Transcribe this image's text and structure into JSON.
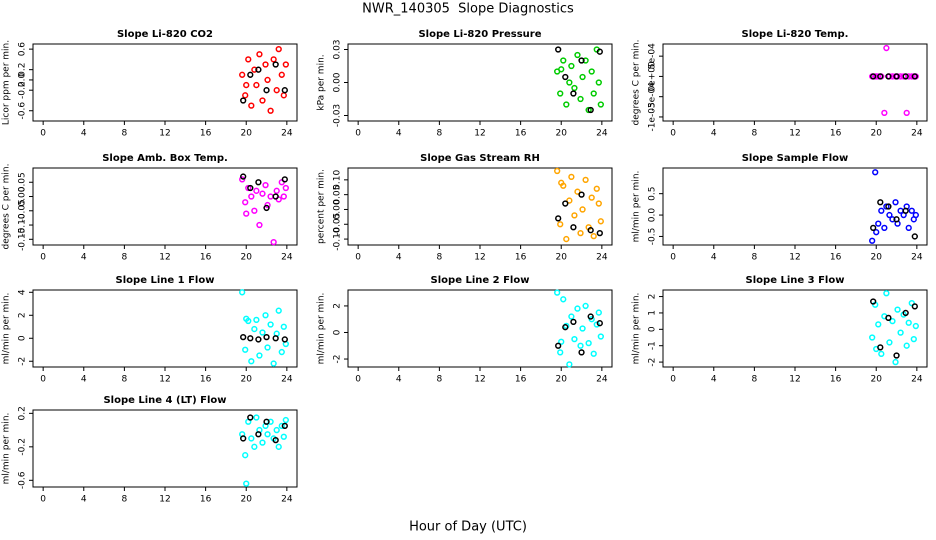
{
  "title": "NWR_140305  Slope Diagnostics",
  "x_label": "Hour of Day (UTC)",
  "chart_data": [
    {
      "type": "scatter",
      "title": "Slope Li-820 CO2",
      "y_label": "Licor ppm per min.",
      "xlim": [
        -1,
        25
      ],
      "xticks": [
        0,
        4,
        8,
        12,
        16,
        20,
        24
      ],
      "ylim": [
        -0.8,
        0.7
      ],
      "yticks": [
        -0.6,
        -0.2,
        {
          "value": 0,
          "label": "0.0"
        },
        0.2,
        0.6
      ],
      "series": [
        {
          "color": "#ff0000",
          "x": [
            19.6,
            19.9,
            20.2,
            20.5,
            20.8,
            21.0,
            21.3,
            21.6,
            21.9,
            22.1,
            22.4,
            22.7,
            23.0,
            23.2,
            23.5,
            23.7,
            23.9,
            20.0
          ],
          "values": [
            0.1,
            -0.3,
            0.4,
            -0.5,
            0.2,
            -0.1,
            0.5,
            -0.4,
            0.3,
            0.0,
            -0.6,
            0.4,
            -0.2,
            0.6,
            0.1,
            -0.3,
            0.3,
            -0.1
          ]
        },
        {
          "color": "#000000",
          "x": [
            19.7,
            20.4,
            21.2,
            22.0,
            22.9,
            23.8
          ],
          "values": [
            -0.4,
            0.1,
            0.2,
            -0.2,
            0.3,
            -0.2
          ]
        }
      ]
    },
    {
      "type": "scatter",
      "title": "Slope Li-820 Pressure",
      "y_label": "kPa per min.",
      "xlim": [
        -1,
        25
      ],
      "xticks": [
        0,
        4,
        8,
        12,
        16,
        20,
        24
      ],
      "ylim": [
        -0.035,
        0.035
      ],
      "yticks": [
        -0.03,
        {
          "value": 0,
          "label": "0.00"
        },
        0.03
      ],
      "series": [
        {
          "color": "#00cc00",
          "x": [
            19.6,
            19.9,
            20.2,
            20.5,
            20.8,
            21.0,
            21.3,
            21.6,
            21.9,
            22.1,
            22.4,
            22.7,
            23.0,
            23.2,
            23.5,
            23.7,
            23.9,
            20.0
          ],
          "values": [
            0.01,
            -0.01,
            0.02,
            -0.02,
            0.0,
            0.015,
            -0.005,
            0.025,
            -0.015,
            0.005,
            0.02,
            -0.025,
            0.01,
            -0.01,
            0.03,
            0.0,
            -0.02,
            0.012
          ]
        },
        {
          "color": "#000000",
          "x": [
            19.7,
            20.4,
            21.2,
            22.0,
            22.9,
            23.8
          ],
          "values": [
            0.03,
            0.005,
            -0.01,
            0.02,
            -0.025,
            0.028
          ]
        }
      ]
    },
    {
      "type": "scatter",
      "title": "Slope Li-820 Temp.",
      "y_label": "degrees C per min.",
      "xlim": [
        -1,
        25
      ],
      "xticks": [
        0,
        4,
        8,
        12,
        16,
        20,
        24
      ],
      "ylim": [
        -0.0011,
        0.0008
      ],
      "yticks": [
        {
          "value": -0.001,
          "label": "-1e-03"
        },
        {
          "value": -0.0005,
          "label": "-5e-04"
        },
        {
          "value": 0,
          "label": "0e+00"
        },
        {
          "value": 0.0005,
          "label": "5e-04"
        }
      ],
      "series": [
        {
          "color": "#ff00ff",
          "x": [
            19.6,
            19.9,
            20.2,
            20.5,
            20.8,
            21.0,
            21.3,
            21.6,
            21.9,
            22.1,
            22.4,
            22.7,
            23.0,
            23.2,
            23.5,
            23.7,
            23.9,
            20.0
          ],
          "values": [
            0,
            0,
            0,
            0,
            -0.0009,
            0.0007,
            0,
            0,
            0,
            0,
            0,
            0,
            -0.0009,
            0,
            0,
            0,
            0,
            0
          ]
        },
        {
          "color": "#000000",
          "x": [
            19.7,
            20.4,
            21.2,
            22.0,
            22.9,
            23.8
          ],
          "values": [
            0,
            0,
            0,
            0,
            0,
            0
          ]
        }
      ]
    },
    {
      "type": "scatter",
      "title": "Slope Amb. Box Temp.",
      "y_label": "degrees C per min.",
      "xlim": [
        -1,
        25
      ],
      "xticks": [
        0,
        4,
        8,
        12,
        16,
        20,
        24
      ],
      "ylim": [
        -0.17,
        0.1
      ],
      "yticks": [
        -0.15,
        {
          "value": -0.1,
          "label": "-0.10"
        },
        -0.05,
        {
          "value": 0,
          "label": "0.00"
        },
        0.05
      ],
      "series": [
        {
          "color": "#ff00ff",
          "x": [
            19.6,
            19.9,
            20.2,
            20.5,
            20.8,
            21.0,
            21.3,
            21.6,
            21.9,
            22.1,
            22.4,
            22.7,
            23.0,
            23.2,
            23.5,
            23.7,
            23.9,
            20.0
          ],
          "values": [
            0.06,
            -0.02,
            0.03,
            0.0,
            -0.05,
            0.02,
            -0.1,
            0.01,
            0.04,
            -0.03,
            0.0,
            -0.16,
            0.02,
            -0.01,
            0.05,
            0.0,
            0.03,
            -0.06
          ]
        },
        {
          "color": "#000000",
          "x": [
            19.7,
            20.4,
            21.2,
            22.0,
            22.9,
            23.8
          ],
          "values": [
            0.07,
            0.03,
            0.05,
            -0.04,
            0.0,
            0.06
          ]
        }
      ]
    },
    {
      "type": "scatter",
      "title": "Slope Gas Stream RH",
      "y_label": "percent per min.",
      "xlim": [
        -1,
        25
      ],
      "xticks": [
        0,
        4,
        8,
        12,
        16,
        20,
        24
      ],
      "ylim": [
        -0.12,
        0.14
      ],
      "yticks": [
        {
          "value": -0.1,
          "label": "-0.10"
        },
        -0.05,
        {
          "value": 0,
          "label": "0.00"
        },
        0.05,
        {
          "value": 0.1,
          "label": "0.10"
        }
      ],
      "series": [
        {
          "color": "#ffa500",
          "x": [
            19.6,
            19.9,
            20.2,
            20.5,
            20.8,
            21.0,
            21.3,
            21.6,
            21.9,
            22.1,
            22.4,
            22.7,
            23.0,
            23.2,
            23.5,
            23.7,
            23.9,
            20.0
          ],
          "values": [
            0.13,
            -0.05,
            0.08,
            -0.1,
            0.03,
            0.11,
            -0.02,
            0.06,
            -0.08,
            0.0,
            0.1,
            -0.06,
            0.04,
            -0.09,
            0.07,
            0.02,
            -0.04,
            0.09
          ]
        },
        {
          "color": "#000000",
          "x": [
            19.7,
            20.4,
            21.2,
            22.0,
            22.9,
            23.8
          ],
          "values": [
            -0.03,
            0.02,
            -0.06,
            0.05,
            -0.07,
            -0.08
          ]
        }
      ]
    },
    {
      "type": "scatter",
      "title": "Slope Sample Flow",
      "y_label": "ml/min per min.",
      "xlim": [
        -1,
        25
      ],
      "xticks": [
        0,
        4,
        8,
        12,
        16,
        20,
        24
      ],
      "ylim": [
        -0.7,
        1.1
      ],
      "yticks": [
        -0.5,
        {
          "value": 0,
          "label": "0.0"
        },
        0.5
      ],
      "series": [
        {
          "color": "#0000ff",
          "x": [
            19.6,
            19.9,
            20.2,
            20.5,
            20.8,
            21.0,
            21.3,
            21.6,
            21.9,
            22.1,
            22.4,
            22.7,
            23.0,
            23.2,
            23.5,
            23.7,
            23.9,
            20.0
          ],
          "values": [
            -0.6,
            1.0,
            -0.2,
            0.1,
            -0.3,
            0.2,
            0.0,
            -0.1,
            0.3,
            -0.2,
            0.1,
            0.0,
            0.2,
            -0.3,
            0.1,
            -0.1,
            0.0,
            -0.4
          ]
        },
        {
          "color": "#000000",
          "x": [
            19.7,
            20.4,
            21.2,
            22.0,
            22.9,
            23.8
          ],
          "values": [
            -0.3,
            0.3,
            0.2,
            -0.1,
            0.1,
            -0.5
          ]
        }
      ]
    },
    {
      "type": "scatter",
      "title": "Slope Line 1 Flow",
      "y_label": "ml/min per min.",
      "xlim": [
        -1,
        25
      ],
      "xticks": [
        0,
        4,
        8,
        12,
        16,
        20,
        24
      ],
      "ylim": [
        -2.5,
        4.2
      ],
      "yticks": [
        -2,
        0,
        2,
        4
      ],
      "series": [
        {
          "color": "#00ffff",
          "x": [
            19.6,
            19.9,
            20.2,
            20.5,
            20.8,
            21.0,
            21.3,
            21.6,
            21.9,
            22.1,
            22.4,
            22.7,
            23.0,
            23.2,
            23.5,
            23.7,
            23.9,
            20.0
          ],
          "values": [
            4.0,
            -1.0,
            1.5,
            -2.0,
            0.8,
            1.6,
            -1.5,
            0.5,
            2.0,
            -0.8,
            1.2,
            -2.2,
            0.4,
            2.4,
            -1.2,
            1.0,
            -0.5,
            1.7
          ]
        },
        {
          "color": "#000000",
          "x": [
            19.7,
            20.4,
            21.2,
            22.0,
            22.9,
            23.8
          ],
          "values": [
            0.1,
            0.0,
            -0.1,
            0.1,
            0.0,
            -0.1
          ]
        }
      ]
    },
    {
      "type": "scatter",
      "title": "Slope Line 2 Flow",
      "y_label": "ml/min per min.",
      "xlim": [
        -1,
        25
      ],
      "xticks": [
        0,
        4,
        8,
        12,
        16,
        20,
        24
      ],
      "ylim": [
        -2.6,
        3.2
      ],
      "yticks": [
        -2,
        0,
        2
      ],
      "series": [
        {
          "color": "#00ffff",
          "x": [
            19.6,
            19.9,
            20.2,
            20.5,
            20.8,
            21.0,
            21.3,
            21.6,
            21.9,
            22.1,
            22.4,
            22.7,
            23.0,
            23.2,
            23.5,
            23.7,
            23.9,
            20.0
          ],
          "values": [
            3.0,
            -1.5,
            2.5,
            0.5,
            -2.4,
            1.2,
            -0.5,
            1.8,
            -1.0,
            0.3,
            2.0,
            -0.8,
            1.0,
            -1.6,
            0.6,
            1.5,
            -0.3,
            -0.7
          ]
        },
        {
          "color": "#000000",
          "x": [
            19.7,
            20.4,
            21.2,
            22.0,
            22.9,
            23.8
          ],
          "values": [
            -1.0,
            0.4,
            0.8,
            -1.5,
            1.2,
            0.7
          ]
        }
      ]
    },
    {
      "type": "scatter",
      "title": "Slope Line 3 Flow",
      "y_label": "ml/min per min.",
      "xlim": [
        -1,
        25
      ],
      "xticks": [
        0,
        4,
        8,
        12,
        16,
        20,
        24
      ],
      "ylim": [
        -2.3,
        2.4
      ],
      "yticks": [
        -2,
        -1,
        0,
        1,
        2
      ],
      "series": [
        {
          "color": "#00ffff",
          "x": [
            19.6,
            19.9,
            20.2,
            20.5,
            20.8,
            21.0,
            21.3,
            21.6,
            21.9,
            22.1,
            22.4,
            22.7,
            23.0,
            23.2,
            23.5,
            23.7,
            23.9,
            20.0
          ],
          "values": [
            -0.5,
            1.5,
            0.3,
            -1.5,
            0.8,
            2.2,
            -0.8,
            0.5,
            -2.0,
            1.2,
            -0.2,
            0.9,
            -1.0,
            0.4,
            1.6,
            -0.6,
            0.2,
            -1.2
          ]
        },
        {
          "color": "#000000",
          "x": [
            19.7,
            20.4,
            21.2,
            22.0,
            22.9,
            23.8
          ],
          "values": [
            1.7,
            -1.1,
            0.7,
            -1.6,
            1.0,
            1.4
          ]
        }
      ]
    },
    {
      "type": "scatter",
      "title": "Slope Line 4 (LT) Flow",
      "y_label": "ml/min per min.",
      "xlim": [
        -1,
        25
      ],
      "xticks": [
        0,
        4,
        8,
        12,
        16,
        20,
        24
      ],
      "ylim": [
        -0.68,
        0.24
      ],
      "yticks": [
        -0.6,
        -0.2,
        0.2
      ],
      "series": [
        {
          "color": "#00ffff",
          "x": [
            19.6,
            19.9,
            20.2,
            20.5,
            20.8,
            21.0,
            21.3,
            21.6,
            21.9,
            22.1,
            22.4,
            22.7,
            23.0,
            23.2,
            23.5,
            23.7,
            23.9,
            20.0
          ],
          "values": [
            -0.05,
            -0.3,
            0.1,
            -0.1,
            -0.2,
            0.15,
            0.0,
            -0.15,
            0.05,
            -0.05,
            0.1,
            -0.1,
            0.0,
            -0.2,
            0.05,
            -0.08,
            0.12,
            -0.64
          ]
        },
        {
          "color": "#000000",
          "x": [
            19.7,
            20.4,
            21.2,
            22.0,
            22.9,
            23.8
          ],
          "values": [
            -0.1,
            0.15,
            -0.05,
            0.1,
            -0.12,
            0.05
          ]
        }
      ]
    }
  ]
}
